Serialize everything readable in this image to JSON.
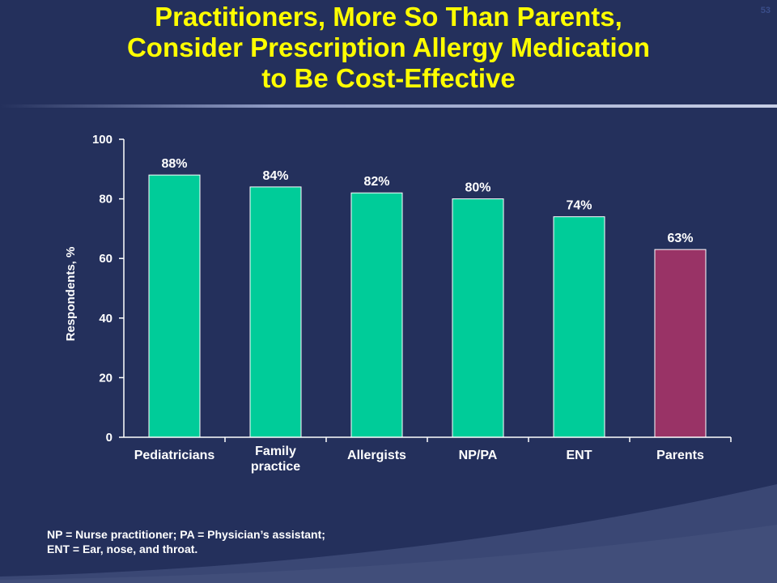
{
  "slide": {
    "title_lines": [
      "Practitioners, More So Than Parents,",
      "Consider Prescription Allergy Medication",
      "to Be Cost-Effective"
    ],
    "number": "53"
  },
  "colors": {
    "background": "#24305c",
    "title": "#ffff00",
    "practitioner_bar": "#00cc99",
    "parent_bar": "#993366"
  },
  "chart_data": {
    "type": "bar",
    "title": "",
    "xlabel": "",
    "ylabel": "Respondents, %",
    "ylim": [
      0,
      100
    ],
    "yticks": [
      0,
      20,
      40,
      60,
      80,
      100
    ],
    "categories": [
      [
        "Pediatricians"
      ],
      [
        "Family",
        "practice"
      ],
      [
        "Allergists"
      ],
      [
        "NP/PA"
      ],
      [
        "ENT"
      ],
      [
        "Parents"
      ]
    ],
    "values": [
      88,
      84,
      82,
      80,
      74,
      63
    ],
    "data_labels": [
      "88%",
      "84%",
      "82%",
      "80%",
      "74%",
      "63%"
    ],
    "bar_colors": [
      "#00cc99",
      "#00cc99",
      "#00cc99",
      "#00cc99",
      "#00cc99",
      "#993366"
    ],
    "grid": false,
    "legend": "none"
  },
  "footnote": {
    "lines": [
      "NP = Nurse practitioner; PA = Physician’s assistant;",
      "ENT = Ear, nose, and throat."
    ]
  }
}
